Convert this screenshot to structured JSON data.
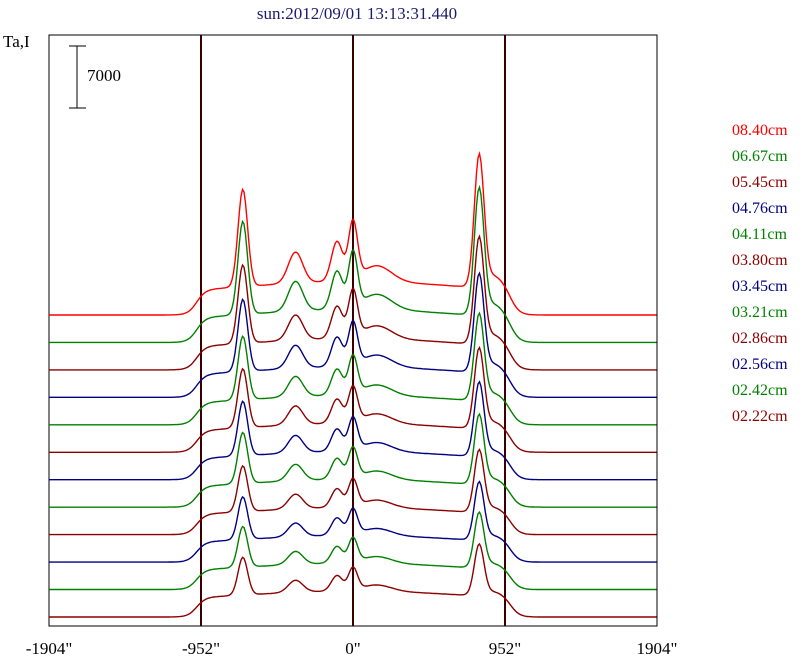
{
  "chart_data": {
    "type": "line",
    "title": "sun:2012/09/01 13:13:31.440",
    "ylabel": "Ta,I",
    "scale_bar_label": "7000",
    "scale_bar_value": 7000,
    "xlim": [
      -1904,
      1904
    ],
    "x_ticks": [
      {
        "value": -1904,
        "label": "-1904\""
      },
      {
        "value": -952,
        "label": "-952\""
      },
      {
        "value": 0,
        "label": "0\""
      },
      {
        "value": 952,
        "label": "952\""
      },
      {
        "value": 1904,
        "label": "1904\""
      }
    ],
    "vertical_markers": [
      -952,
      0,
      952
    ],
    "trace_spacing": 3100,
    "series": [
      {
        "name": "08.40cm",
        "color": "#ff0000",
        "amp": 1.0,
        "offset": 11
      },
      {
        "name": "06.67cm",
        "color": "#008000",
        "amp": 0.97,
        "offset": 10
      },
      {
        "name": "05.45cm",
        "color": "#8b0000",
        "amp": 0.86,
        "offset": 9
      },
      {
        "name": "04.76cm",
        "color": "#000080",
        "amp": 0.81,
        "offset": 8
      },
      {
        "name": "04.11cm",
        "color": "#008000",
        "amp": 0.74,
        "offset": 7
      },
      {
        "name": "03.80cm",
        "color": "#8b0000",
        "amp": 0.7,
        "offset": 6
      },
      {
        "name": "03.45cm",
        "color": "#000080",
        "amp": 0.66,
        "offset": 5
      },
      {
        "name": "03.21cm",
        "color": "#008000",
        "amp": 0.63,
        "offset": 4
      },
      {
        "name": "02.86cm",
        "color": "#8b0000",
        "amp": 0.58,
        "offset": 3
      },
      {
        "name": "02.56cm",
        "color": "#000080",
        "amp": 0.55,
        "offset": 2
      },
      {
        "name": "02.42cm",
        "color": "#008000",
        "amp": 0.53,
        "offset": 1
      },
      {
        "name": "02.22cm",
        "color": "#8b0000",
        "amp": 0.5,
        "offset": 0
      }
    ]
  }
}
